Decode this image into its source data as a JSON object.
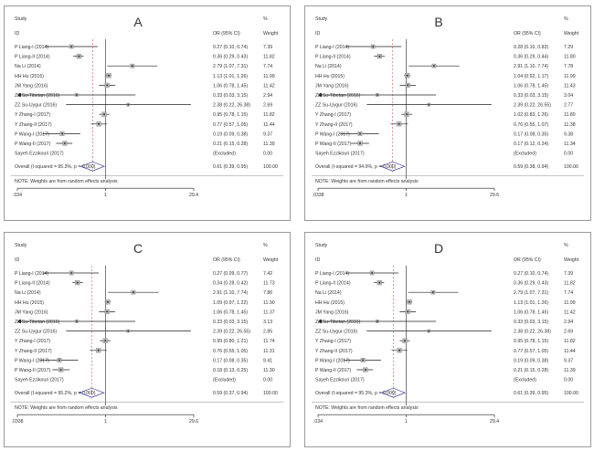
{
  "chart_data": [
    {
      "type": "forest",
      "panel_label": "A",
      "header": {
        "study": "Study",
        "id": "ID",
        "or_ci": "OR (95% CI)",
        "pct": "%",
        "weight": "Weight"
      },
      "x_scale": "log",
      "xlim": [
        0.034,
        29.4
      ],
      "x_tick_labels": [
        ".034",
        "1",
        "29.4"
      ],
      "null_line": 1,
      "studies": [
        {
          "id": "P Liang-I (2014)",
          "or": 0.27,
          "lo": 0.1,
          "hi": 0.74,
          "or_ci": "0.27 (0.10, 0.74)",
          "weight": "7.39",
          "w": 7.39
        },
        {
          "id": "P Liang-II (2014)",
          "or": 0.36,
          "lo": 0.29,
          "hi": 0.43,
          "or_ci": "0.36 (0.29, 0.43)",
          "weight": "11.82",
          "w": 11.82
        },
        {
          "id": "Na Li (2014)",
          "or": 2.79,
          "lo": 1.07,
          "hi": 7.31,
          "or_ci": "2.79 (1.07, 7.31)",
          "weight": "7.74",
          "w": 7.74
        },
        {
          "id": "HH Hu (2015)",
          "or": 1.13,
          "lo": 1.01,
          "hi": 1.26,
          "or_ci": "1.13 (1.01, 1.26)",
          "weight": "11.99",
          "w": 11.99
        },
        {
          "id": "JM Yang (2016)",
          "or": 1.06,
          "lo": 0.78,
          "hi": 1.45,
          "or_ci": "1.06 (0.78, 1.45)",
          "weight": "11.42",
          "w": 11.42
        },
        {
          "id": "ZZ Su-Tibetan (2016)",
          "or": 0.33,
          "or_ci": "0.33 (0.03, 3.15)",
          "lo": 0.03,
          "hi": 3.15,
          "weight": "2.94",
          "w": 2.94
        },
        {
          "id": "ZZ Su-Uygur (2016)",
          "or": 2.38,
          "or_ci": "2.38 (0.22, 26.38)",
          "lo": 0.22,
          "hi": 26.38,
          "weight": "2.69",
          "w": 2.69
        },
        {
          "id": "Y Zhang-I (2017)",
          "or": 0.95,
          "lo": 0.78,
          "hi": 1.15,
          "or_ci": "0.95 (0.78, 1.15)",
          "weight": "11.82",
          "w": 11.82
        },
        {
          "id": "Y Zhang-II (2017)",
          "or": 0.77,
          "lo": 0.57,
          "hi": 1.05,
          "or_ci": "0.77 (0.57, 1.05)",
          "weight": "11.44",
          "w": 11.44
        },
        {
          "id": "P Wang-I (2017)",
          "or": 0.19,
          "lo": 0.09,
          "hi": 0.38,
          "or_ci": "0.19 (0.09, 0.38)",
          "weight": "9.37",
          "w": 9.37
        },
        {
          "id": "P Wang-II (2017)",
          "or": 0.21,
          "lo": 0.15,
          "hi": 0.28,
          "or_ci": "0.21 (0.15, 0.28)",
          "weight": "11.39",
          "w": 11.39
        },
        {
          "id": "Sayeh Ezzikouri (2017)",
          "or": null,
          "lo": null,
          "hi": null,
          "or_ci": "(Excluded)",
          "weight": "0.00",
          "w": 0
        }
      ],
      "overall": {
        "label": "Overall  (I-squared = 95.3%, p = 0.000)",
        "or": 0.61,
        "lo": 0.39,
        "hi": 0.95,
        "or_ci": "0.61 (0.39, 0.95)",
        "weight": "100.00"
      },
      "note": "NOTE: Weights are from random effects analysis"
    },
    {
      "type": "forest",
      "panel_label": "B",
      "header": {
        "study": "Study",
        "id": "ID",
        "or_ci": "OR (95% CI)",
        "pct": "%",
        "weight": "Weight"
      },
      "x_scale": "log",
      "xlim": [
        0.0338,
        29.6
      ],
      "x_tick_labels": [
        ".0338",
        "1",
        "29.6"
      ],
      "null_line": 1,
      "studies": [
        {
          "id": "P Liang-I (2014)",
          "or": 0.28,
          "lo": 0.1,
          "hi": 0.83,
          "or_ci": "0.28 (0.10, 0.83)",
          "weight": "7.29",
          "w": 7.29
        },
        {
          "id": "P Liang-II (2014)",
          "or": 0.36,
          "lo": 0.29,
          "hi": 0.44,
          "or_ci": "0.36 (0.29, 0.44)",
          "weight": "11.80",
          "w": 11.8
        },
        {
          "id": "Na Li (2014)",
          "or": 2.91,
          "lo": 1.1,
          "hi": 7.74,
          "or_ci": "2.91 (1.10, 7.74)",
          "weight": "7.78",
          "w": 7.78
        },
        {
          "id": "HH Hu (2015)",
          "or": 1.04,
          "lo": 0.92,
          "hi": 1.17,
          "or_ci": "1.04 (0.92, 1.17)",
          "weight": "11.99",
          "w": 11.99
        },
        {
          "id": "JM Yang (2016)",
          "or": 1.06,
          "lo": 0.78,
          "hi": 1.45,
          "or_ci": "1.06 (0.78, 1.45)",
          "weight": "11.43",
          "w": 11.43
        },
        {
          "id": "ZZ Su-Tibetan (2016)",
          "or": 0.33,
          "or_ci": "0.33 (0.03, 3.15)",
          "lo": 0.03,
          "hi": 3.15,
          "weight": "3.04",
          "w": 3.04
        },
        {
          "id": "ZZ Su-Uygur (2016)",
          "or": 2.39,
          "or_ci": "2.39 (0.22, 26.55)",
          "lo": 0.22,
          "hi": 26.55,
          "weight": "2.77",
          "w": 2.77
        },
        {
          "id": "Y Zhang-I (2017)",
          "or": 1.02,
          "lo": 0.83,
          "hi": 1.26,
          "or_ci": "1.02 (0.83, 1.26)",
          "weight": "11.80",
          "w": 11.8
        },
        {
          "id": "Y Zhang-II (2017)",
          "or": 0.76,
          "lo": 0.55,
          "hi": 1.07,
          "or_ci": "0.76 (0.55, 1.07)",
          "weight": "11.38",
          "w": 11.38
        },
        {
          "id": "P Wang-I (2017)",
          "or": 0.17,
          "lo": 0.08,
          "hi": 0.35,
          "or_ci": "0.17 (0.08, 0.35)",
          "weight": "9.38",
          "w": 9.38
        },
        {
          "id": "P Wang-II (2017)",
          "or": 0.17,
          "lo": 0.12,
          "hi": 0.24,
          "or_ci": "0.17 (0.12, 0.24)",
          "weight": "11.34",
          "w": 11.34
        },
        {
          "id": "Sayeh Ezzikouri (2017)",
          "or": null,
          "lo": null,
          "hi": null,
          "or_ci": "(Excluded)",
          "weight": "0.00",
          "w": 0
        }
      ],
      "overall": {
        "label": "Overall  (I-squared = 94.9%, p = 0.000)",
        "or": 0.59,
        "lo": 0.38,
        "hi": 0.94,
        "or_ci": "0.59 (0.38, 0.94)",
        "weight": "100.00"
      },
      "note": "NOTE: Weights are from random effects analysis"
    },
    {
      "type": "forest",
      "panel_label": "C",
      "header": {
        "study": "Study",
        "id": "ID",
        "or_ci": "OR (95% CI)",
        "pct": "%",
        "weight": "Weight"
      },
      "x_scale": "log",
      "xlim": [
        0.0338,
        29.6
      ],
      "x_tick_labels": [
        ".0338",
        "1",
        "29.6"
      ],
      "null_line": 1,
      "studies": [
        {
          "id": "P Liang-I (2014)",
          "or": 0.27,
          "lo": 0.09,
          "hi": 0.77,
          "or_ci": "0.27 (0.09, 0.77)",
          "weight": "7.42",
          "w": 7.42
        },
        {
          "id": "P Liang-II (2014)",
          "or": 0.34,
          "lo": 0.28,
          "hi": 0.42,
          "or_ci": "0.34 (0.28, 0.42)",
          "weight": "11.73",
          "w": 11.73
        },
        {
          "id": "Na Li (2014)",
          "or": 2.91,
          "lo": 1.1,
          "hi": 7.74,
          "or_ci": "2.91 (1.10, 7.74)",
          "weight": "7.86",
          "w": 7.86
        },
        {
          "id": "HH Hu (2015)",
          "or": 1.09,
          "lo": 0.97,
          "hi": 1.22,
          "or_ci": "1.09 (0.97, 1.22)",
          "weight": "11.90",
          "w": 11.9
        },
        {
          "id": "JM Yang (2016)",
          "or": 1.06,
          "lo": 0.78,
          "hi": 1.45,
          "or_ci": "1.06 (0.78, 1.45)",
          "weight": "11.37",
          "w": 11.37
        },
        {
          "id": "ZZ Su-Tibetan (2016)",
          "or": 0.33,
          "or_ci": "0.33 (0.03, 3.15)",
          "lo": 0.03,
          "hi": 3.15,
          "weight": "3.13",
          "w": 3.13
        },
        {
          "id": "ZZ Su-Uygur (2016)",
          "or": 2.39,
          "or_ci": "2.39 (0.22, 26.55)",
          "lo": 0.22,
          "hi": 26.55,
          "weight": "2.85",
          "w": 2.85
        },
        {
          "id": "Y Zhang-I (2017)",
          "or": 0.99,
          "lo": 0.8,
          "hi": 1.21,
          "or_ci": "0.99 (0.80, 1.21)",
          "weight": "11.74",
          "w": 11.74
        },
        {
          "id": "Y Zhang-II (2017)",
          "or": 0.76,
          "lo": 0.55,
          "hi": 1.05,
          "or_ci": "0.76 (0.55, 1.05)",
          "weight": "11.31",
          "w": 11.31
        },
        {
          "id": "P Wang-I (2017)",
          "or": 0.17,
          "lo": 0.08,
          "hi": 0.35,
          "or_ci": "0.17 (0.08, 0.35)",
          "weight": "9.41",
          "w": 9.41
        },
        {
          "id": "P Wang-II (2017)",
          "or": 0.18,
          "lo": 0.13,
          "hi": 0.25,
          "or_ci": "0.18 (0.13, 0.25)",
          "weight": "11.30",
          "w": 11.3
        },
        {
          "id": "Sayeh Ezzikouri (2017)",
          "or": null,
          "lo": null,
          "hi": null,
          "or_ci": "(Excluded)",
          "weight": "0.00",
          "w": 0
        }
      ],
      "overall": {
        "label": "Overall  (I-squared = 95.2%, p = 0.000)",
        "or": 0.59,
        "lo": 0.37,
        "hi": 0.94,
        "or_ci": "0.59 (0.37, 0.94)",
        "weight": "100.00"
      },
      "note": "NOTE: Weights are from random effects analysis"
    },
    {
      "type": "forest",
      "panel_label": "D",
      "header": {
        "study": "Study",
        "id": "ID",
        "or_ci": "OR (95% CI)",
        "pct": "%",
        "weight": "Weight"
      },
      "x_scale": "log",
      "xlim": [
        0.034,
        29.4
      ],
      "x_tick_labels": [
        ".034",
        "1",
        "29.4"
      ],
      "null_line": 1,
      "studies": [
        {
          "id": "P Liang-I (2014)",
          "or": 0.27,
          "lo": 0.1,
          "hi": 0.74,
          "or_ci": "0.27 (0.10, 0.74)",
          "weight": "7.39",
          "w": 7.39
        },
        {
          "id": "P Liang-II (2014)",
          "or": 0.36,
          "lo": 0.29,
          "hi": 0.43,
          "or_ci": "0.36 (0.29, 0.43)",
          "weight": "11.82",
          "w": 11.82
        },
        {
          "id": "Na Li (2014)",
          "or": 2.79,
          "lo": 1.07,
          "hi": 7.31,
          "or_ci": "2.79 (1.07, 7.31)",
          "weight": "7.74",
          "w": 7.74
        },
        {
          "id": "HH Hu (2015)",
          "or": 1.13,
          "lo": 1.01,
          "hi": 1.26,
          "or_ci": "1.13 (1.01, 1.26)",
          "weight": "11.99",
          "w": 11.99
        },
        {
          "id": "JM Yang (2016)",
          "or": 1.06,
          "lo": 0.78,
          "hi": 1.45,
          "or_ci": "1.06 (0.78, 1.45)",
          "weight": "11.42",
          "w": 11.42
        },
        {
          "id": "ZZ Su-Tibetan (2016)",
          "or": 0.33,
          "or_ci": "0.33 (0.03, 3.15)",
          "lo": 0.03,
          "hi": 3.15,
          "weight": "2.94",
          "w": 2.94
        },
        {
          "id": "ZZ Su-Uygur (2016)",
          "or": 2.38,
          "or_ci": "2.38 (0.22, 26.38)",
          "lo": 0.22,
          "hi": 26.38,
          "weight": "2.69",
          "w": 2.69
        },
        {
          "id": "Y Zhang-I (2017)",
          "or": 0.95,
          "lo": 0.78,
          "hi": 1.15,
          "or_ci": "0.95 (0.78, 1.15)",
          "weight": "11.82",
          "w": 11.82
        },
        {
          "id": "Y Zhang-II (2017)",
          "or": 0.77,
          "lo": 0.57,
          "hi": 1.05,
          "or_ci": "0.77 (0.57, 1.05)",
          "weight": "11.44",
          "w": 11.44
        },
        {
          "id": "P Wang-I (2017)",
          "or": 0.19,
          "lo": 0.09,
          "hi": 0.38,
          "or_ci": "0.19 (0.09, 0.38)",
          "weight": "9.37",
          "w": 9.37
        },
        {
          "id": "P Wang-II (2017)",
          "or": 0.21,
          "lo": 0.15,
          "hi": 0.28,
          "or_ci": "0.21 (0.15, 0.28)",
          "weight": "11.39",
          "w": 11.39
        },
        {
          "id": "Sayeh Ezzikouri (2017)",
          "or": null,
          "lo": null,
          "hi": null,
          "or_ci": "(Excluded)",
          "weight": "0.00",
          "w": 0
        }
      ],
      "overall": {
        "label": "Overall  (I-squared = 95.3%, p = 0.000)",
        "or": 0.61,
        "lo": 0.39,
        "hi": 0.95,
        "or_ci": "0.61 (0.39, 0.95)",
        "weight": "100.00"
      },
      "note": "NOTE: Weights are from random effects analysis"
    }
  ]
}
